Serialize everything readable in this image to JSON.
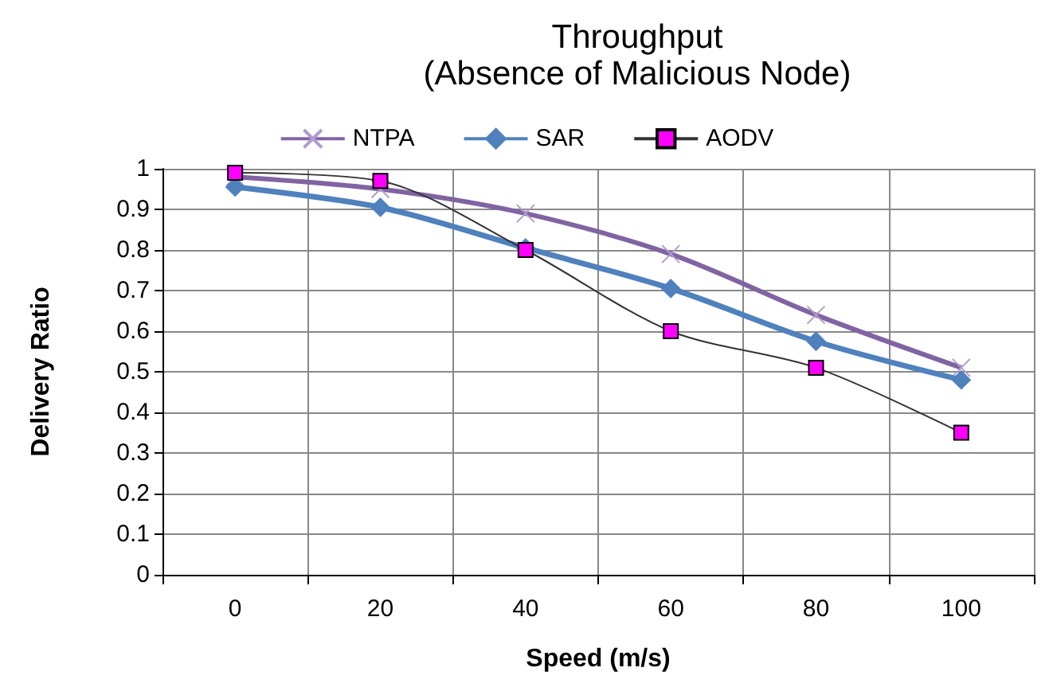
{
  "chart_data": {
    "type": "line",
    "title": "Throughput",
    "subtitle": "(Absence of Malicious Node)",
    "xlabel": "Speed (m/s)",
    "ylabel": "Delivery Ratio",
    "categories": [
      "0",
      "20",
      "40",
      "60",
      "80",
      "100"
    ],
    "series": [
      {
        "name": "NTPA",
        "color": "#8064a2",
        "marker": "cross",
        "values": [
          0.98,
          0.95,
          0.89,
          0.79,
          0.64,
          0.51
        ]
      },
      {
        "name": "SAR",
        "color": "#4f81bd",
        "marker": "diamond",
        "values": [
          0.955,
          0.905,
          0.805,
          0.705,
          0.575,
          0.48
        ]
      },
      {
        "name": "AODV",
        "color": "#ff00ff",
        "marker": "square",
        "values": [
          0.99,
          0.97,
          0.8,
          0.6,
          0.51,
          0.35
        ]
      }
    ],
    "ylim": [
      0,
      1
    ],
    "yticks": [
      0,
      0.1,
      0.2,
      0.3,
      0.4,
      0.5,
      0.6,
      0.7,
      0.8,
      0.9,
      1
    ],
    "grid": true,
    "legend": "top"
  }
}
